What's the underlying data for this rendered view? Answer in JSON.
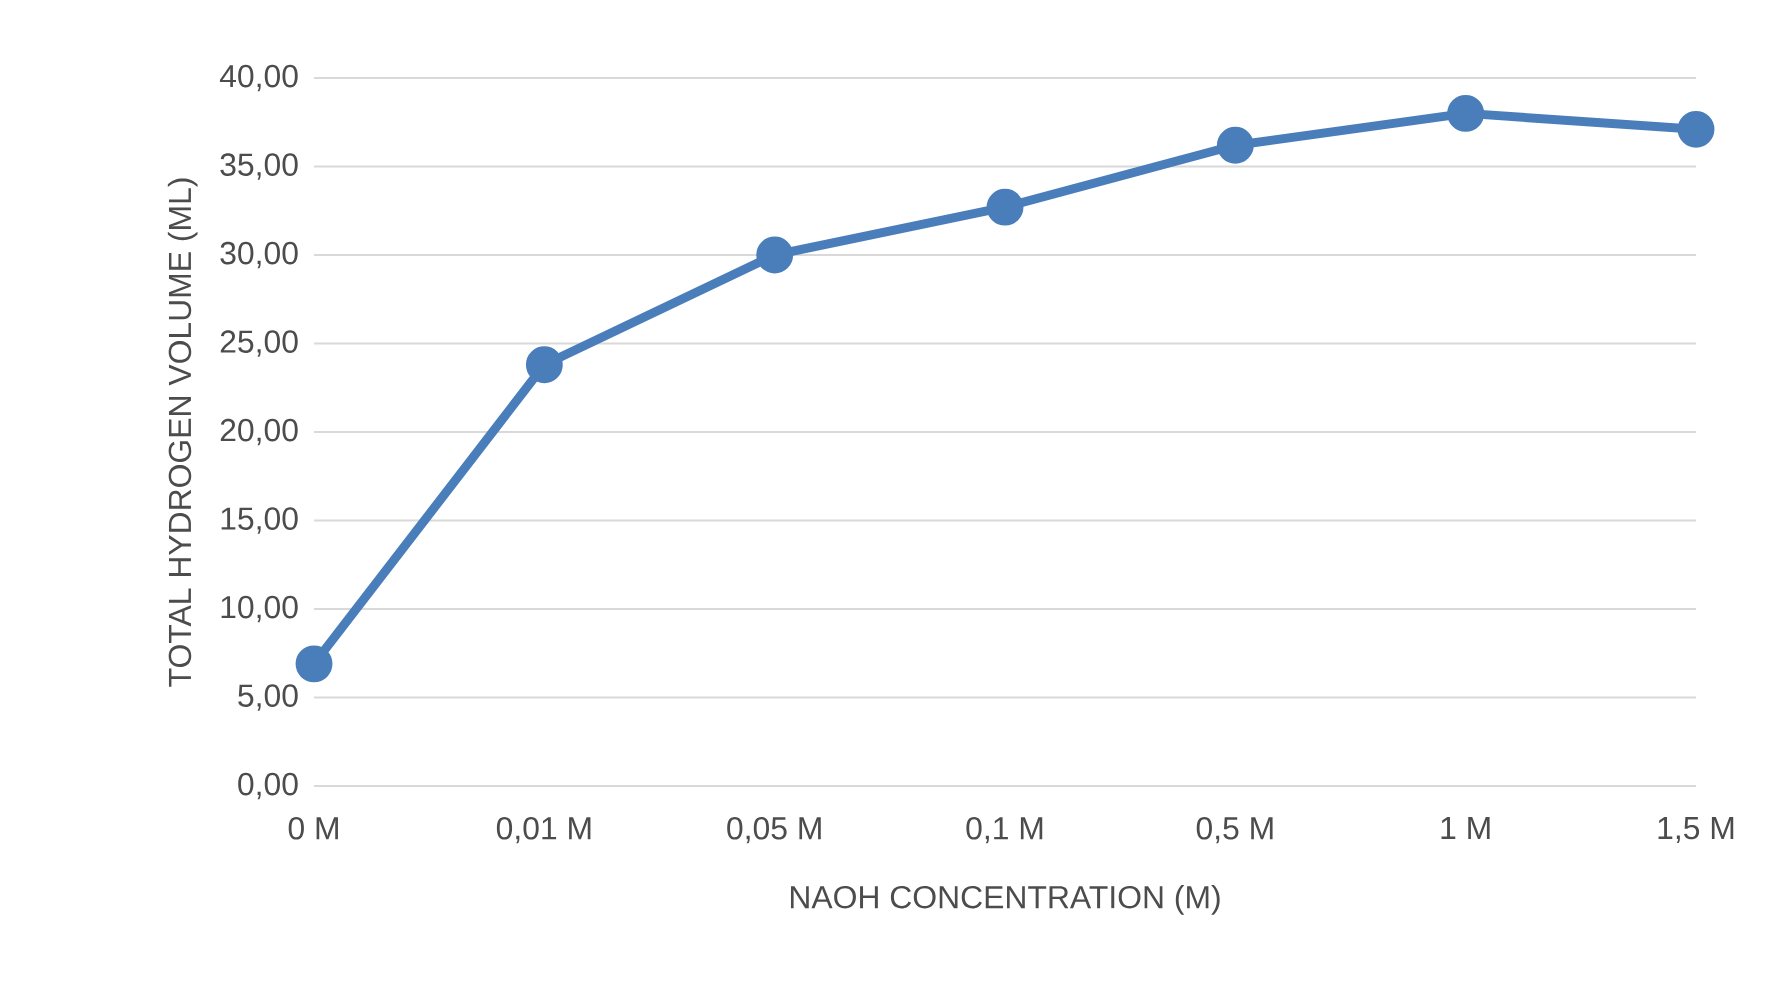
{
  "chart_data": {
    "type": "line",
    "xlabel": "NAOH CONCENTRATION (M)",
    "ylabel": "TOTAL HYDROGEN VOLUME (ML)",
    "categories": [
      "0 M",
      "0,01 M",
      "0,05 M",
      "0,1 M",
      "0,5 M",
      "1 M",
      "1,5 M"
    ],
    "series": [
      {
        "color": "#4a7ebb",
        "values": [
          6.9,
          23.8,
          30.0,
          32.7,
          36.2,
          38.0,
          37.1
        ]
      }
    ],
    "ylim": [
      0,
      40
    ],
    "yticks": [
      {
        "value": 0,
        "label": "0,00"
      },
      {
        "value": 5,
        "label": "5,00"
      },
      {
        "value": 10,
        "label": "10,00"
      },
      {
        "value": 15,
        "label": "15,00"
      },
      {
        "value": 20,
        "label": "20,00"
      },
      {
        "value": 25,
        "label": "25,00"
      },
      {
        "value": 30,
        "label": "30,00"
      },
      {
        "value": 35,
        "label": "35,00"
      },
      {
        "value": 40,
        "label": "40,00"
      }
    ],
    "grid": "y",
    "marker": "circle",
    "line_style": "solid"
  }
}
